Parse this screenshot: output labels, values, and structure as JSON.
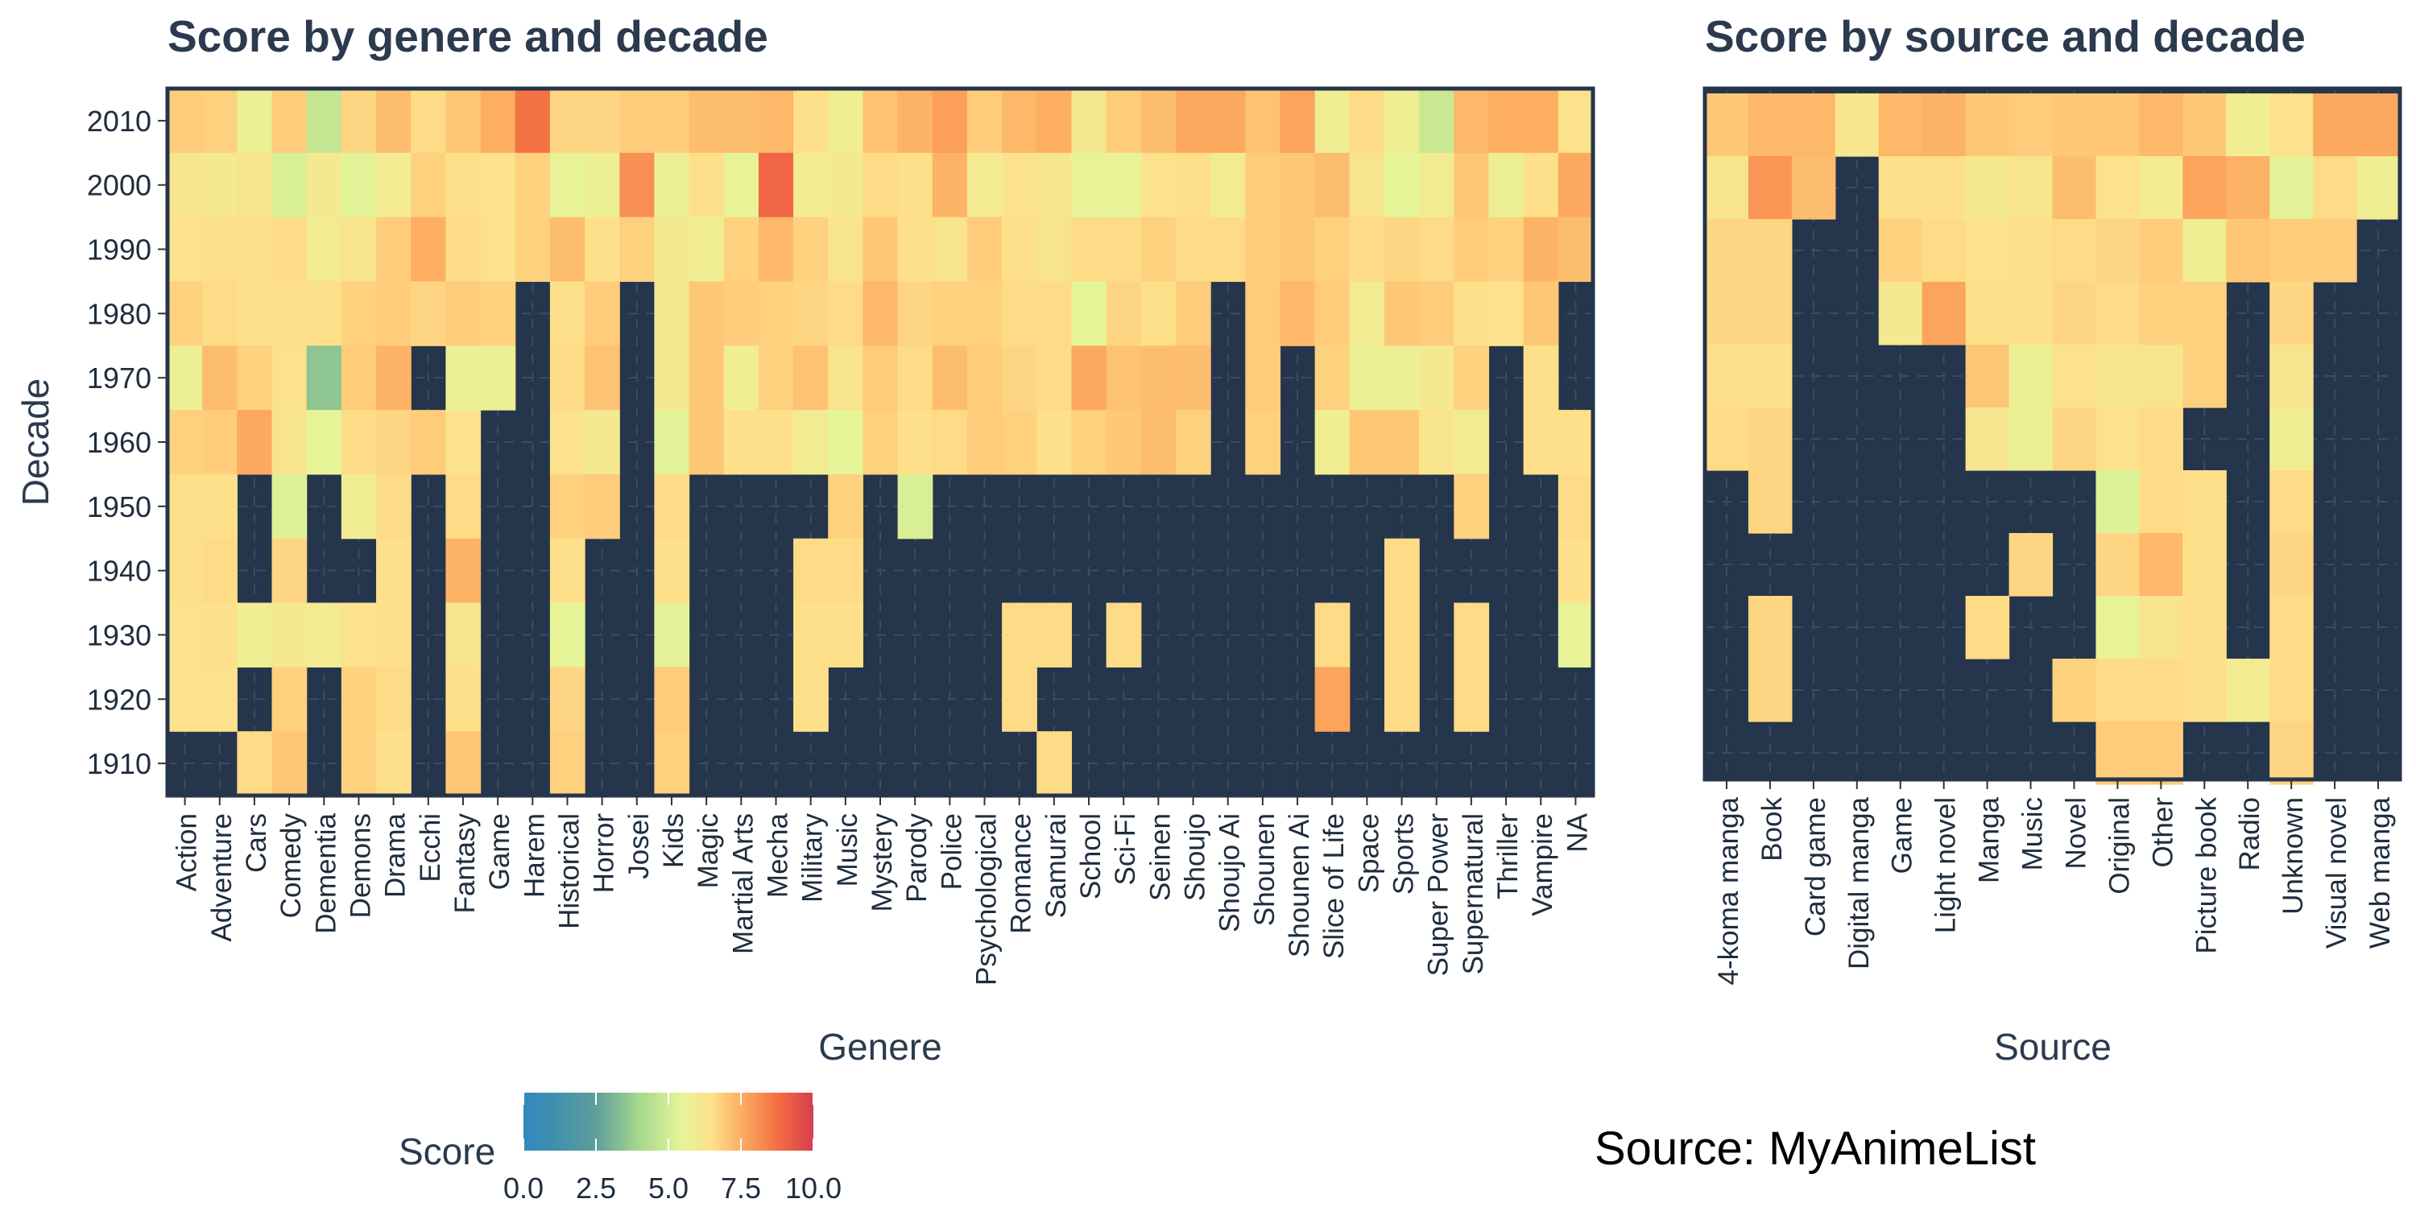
{
  "chart_data": [
    {
      "type": "heatmap",
      "title": "Score by genere and decade",
      "xlabel": "Genere",
      "ylabel": "Decade",
      "x": [
        "Action",
        "Adventure",
        "Cars",
        "Comedy",
        "Dementia",
        "Demons",
        "Drama",
        "Ecchi",
        "Fantasy",
        "Game",
        "Harem",
        "Historical",
        "Horror",
        "Josei",
        "Kids",
        "Magic",
        "Martial Arts",
        "Mecha",
        "Military",
        "Music",
        "Mystery",
        "Parody",
        "Police",
        "Psychological",
        "Romance",
        "Samurai",
        "School",
        "Sci-Fi",
        "Seinen",
        "Shoujo",
        "Shoujo Ai",
        "Shounen",
        "Shounen Ai",
        "Slice of Life",
        "Space",
        "Sports",
        "Super Power",
        "Supernatural",
        "Thriller",
        "Vampire",
        "NA"
      ],
      "y": [
        "2010",
        "2000",
        "1990",
        "1980",
        "1970",
        "1960",
        "1950",
        "1940",
        "1930",
        "1920",
        "1910"
      ],
      "values": [
        [
          6.9,
          6.8,
          5.8,
          6.9,
          4.7,
          6.7,
          7.2,
          6.6,
          7.0,
          7.5,
          8.7,
          6.7,
          6.7,
          6.9,
          6.9,
          7.2,
          7.2,
          7.3,
          6.5,
          5.9,
          7.1,
          7.4,
          7.8,
          6.9,
          7.3,
          7.5,
          6.1,
          6.9,
          7.2,
          7.6,
          7.6,
          7.1,
          7.7,
          5.9,
          6.6,
          5.9,
          4.8,
          7.3,
          7.5,
          7.5,
          6.4
        ],
        [
          6.2,
          6.1,
          6.3,
          5.2,
          6.1,
          5.4,
          6.0,
          6.8,
          6.5,
          6.4,
          6.8,
          5.6,
          5.8,
          8.1,
          5.8,
          6.5,
          5.6,
          9.0,
          6.0,
          6.1,
          6.6,
          6.5,
          7.4,
          6.0,
          6.4,
          6.2,
          5.6,
          5.6,
          6.4,
          6.5,
          6.0,
          6.9,
          7.0,
          7.2,
          6.3,
          5.5,
          6.0,
          7.0,
          5.8,
          6.5,
          7.6
        ],
        [
          6.4,
          6.5,
          6.5,
          6.6,
          6.0,
          6.3,
          6.9,
          7.5,
          6.6,
          6.4,
          6.8,
          7.2,
          6.5,
          6.8,
          6.1,
          5.9,
          6.8,
          7.3,
          6.8,
          6.3,
          7.0,
          6.5,
          6.3,
          6.9,
          6.5,
          6.3,
          6.6,
          6.6,
          6.8,
          6.6,
          6.6,
          6.9,
          7.0,
          6.8,
          6.6,
          6.7,
          6.6,
          6.9,
          6.8,
          7.4,
          7.2
        ],
        [
          6.8,
          6.6,
          6.5,
          6.5,
          6.5,
          6.8,
          6.9,
          6.7,
          6.9,
          6.8,
          null,
          6.5,
          6.9,
          null,
          6.1,
          7.0,
          6.9,
          6.8,
          6.7,
          6.6,
          7.3,
          6.7,
          6.8,
          6.8,
          6.6,
          6.6,
          5.5,
          6.7,
          6.5,
          6.9,
          null,
          6.9,
          7.3,
          6.9,
          6.0,
          7.0,
          6.9,
          6.5,
          6.4,
          7.0,
          null
        ],
        [
          5.8,
          7.2,
          6.8,
          6.4,
          3.5,
          6.9,
          7.4,
          null,
          5.8,
          5.8,
          null,
          6.6,
          7.1,
          null,
          6.1,
          7.0,
          5.9,
          6.8,
          7.1,
          6.3,
          6.9,
          6.6,
          7.2,
          6.9,
          6.7,
          6.6,
          7.6,
          7.1,
          7.2,
          7.2,
          null,
          6.9,
          null,
          6.8,
          5.8,
          5.8,
          6.1,
          6.8,
          null,
          6.5,
          null
        ],
        [
          6.8,
          6.9,
          7.6,
          6.3,
          5.5,
          6.6,
          6.7,
          6.9,
          6.4,
          null,
          null,
          6.4,
          6.1,
          null,
          5.4,
          7.0,
          6.5,
          6.5,
          6.0,
          5.5,
          6.8,
          6.5,
          6.6,
          6.9,
          6.8,
          6.5,
          6.8,
          7.0,
          7.2,
          6.8,
          null,
          6.8,
          null,
          5.9,
          7.0,
          7.0,
          6.3,
          6.0,
          null,
          6.5,
          6.5
        ],
        [
          6.5,
          6.5,
          null,
          5.3,
          null,
          5.9,
          6.6,
          null,
          6.6,
          null,
          null,
          6.8,
          6.9,
          null,
          6.6,
          null,
          null,
          null,
          null,
          6.8,
          null,
          5.2,
          null,
          null,
          null,
          null,
          null,
          null,
          null,
          null,
          null,
          null,
          null,
          null,
          null,
          null,
          null,
          6.8,
          null,
          null,
          6.6
        ],
        [
          6.5,
          6.6,
          null,
          6.7,
          null,
          null,
          6.5,
          null,
          7.4,
          null,
          null,
          6.5,
          null,
          null,
          6.5,
          null,
          null,
          null,
          6.6,
          6.6,
          null,
          null,
          null,
          null,
          null,
          null,
          null,
          null,
          null,
          null,
          null,
          null,
          null,
          null,
          null,
          6.6,
          null,
          null,
          null,
          null,
          6.5
        ],
        [
          6.4,
          6.5,
          5.9,
          6.1,
          6.0,
          6.4,
          6.5,
          null,
          6.2,
          null,
          null,
          5.5,
          null,
          null,
          5.4,
          null,
          null,
          null,
          6.5,
          6.5,
          null,
          null,
          null,
          null,
          6.6,
          6.6,
          null,
          6.6,
          null,
          null,
          null,
          null,
          null,
          6.6,
          null,
          6.6,
          null,
          6.6,
          null,
          null,
          5.6
        ],
        [
          6.4,
          6.4,
          null,
          6.8,
          null,
          6.8,
          6.6,
          null,
          6.5,
          null,
          null,
          6.7,
          null,
          null,
          6.9,
          null,
          null,
          null,
          6.5,
          null,
          null,
          null,
          null,
          null,
          6.6,
          null,
          null,
          null,
          null,
          null,
          null,
          null,
          null,
          7.7,
          null,
          6.6,
          null,
          6.6,
          null,
          null,
          null
        ],
        [
          null,
          null,
          6.6,
          7.0,
          null,
          6.8,
          6.5,
          null,
          7.0,
          null,
          null,
          6.8,
          null,
          null,
          6.8,
          null,
          null,
          null,
          null,
          null,
          null,
          null,
          null,
          null,
          null,
          6.6,
          null,
          null,
          null,
          null,
          null,
          null,
          null,
          null,
          null,
          null,
          null,
          null,
          null,
          null,
          null
        ]
      ]
    },
    {
      "type": "heatmap",
      "title": "Score by source and decade",
      "xlabel": "Source",
      "ylabel": "",
      "x": [
        "4-koma manga",
        "Book",
        "Card game",
        "Digital manga",
        "Game",
        "Light novel",
        "Manga",
        "Music",
        "Novel",
        "Original",
        "Other",
        "Picture book",
        "Radio",
        "Unknown",
        "Visual novel",
        "Web manga"
      ],
      "y": [
        "2010",
        "2000",
        "1990",
        "1980",
        "1970",
        "1960",
        "1950",
        "1940",
        "1930",
        "1920",
        "1910"
      ],
      "values": [
        [
          7.0,
          7.3,
          7.3,
          6.2,
          7.3,
          7.4,
          7.0,
          6.9,
          7.0,
          7.0,
          7.3,
          7.0,
          5.9,
          6.4,
          7.6,
          7.6
        ],
        [
          6.3,
          8.0,
          7.2,
          null,
          6.5,
          6.5,
          6.1,
          6.3,
          7.2,
          6.4,
          6.0,
          7.7,
          7.4,
          5.4,
          6.6,
          5.9
        ],
        [
          6.7,
          6.7,
          null,
          null,
          6.8,
          6.6,
          6.4,
          6.5,
          6.6,
          6.7,
          6.9,
          5.9,
          7.0,
          6.9,
          6.9,
          null
        ],
        [
          6.7,
          6.7,
          null,
          null,
          6.1,
          7.7,
          6.5,
          6.5,
          6.7,
          6.6,
          6.8,
          6.8,
          null,
          6.7,
          null,
          null
        ],
        [
          6.5,
          6.5,
          null,
          null,
          null,
          null,
          7.0,
          5.8,
          6.4,
          6.2,
          6.3,
          6.8,
          null,
          6.3,
          null,
          null
        ],
        [
          6.6,
          6.7,
          null,
          null,
          null,
          null,
          6.2,
          5.8,
          6.7,
          6.4,
          6.6,
          null,
          null,
          5.9,
          null,
          null
        ],
        [
          null,
          6.7,
          null,
          null,
          null,
          null,
          null,
          null,
          null,
          5.3,
          6.6,
          6.5,
          null,
          6.6,
          null,
          null
        ],
        [
          null,
          null,
          null,
          null,
          null,
          null,
          null,
          6.7,
          null,
          6.7,
          7.3,
          6.5,
          null,
          6.7,
          null,
          null
        ],
        [
          null,
          6.7,
          null,
          null,
          null,
          null,
          6.6,
          null,
          null,
          5.6,
          6.3,
          6.5,
          null,
          6.6,
          null,
          null
        ],
        [
          null,
          6.7,
          null,
          null,
          null,
          null,
          null,
          null,
          6.8,
          6.6,
          6.6,
          6.5,
          6.0,
          6.6,
          null,
          null
        ],
        [
          null,
          null,
          null,
          null,
          null,
          null,
          null,
          null,
          null,
          6.9,
          6.9,
          null,
          null,
          6.7,
          null,
          null
        ]
      ]
    }
  ],
  "legend": {
    "title": "Score",
    "ticks": [
      "0.0",
      "2.5",
      "5.0",
      "7.5",
      "10.0"
    ],
    "range": [
      0,
      10
    ]
  },
  "caption": "Source: MyAnimeList",
  "colors": {
    "panel_bg": "#25354b",
    "text": "#1f2d3d",
    "grid": "#3b4c68"
  }
}
